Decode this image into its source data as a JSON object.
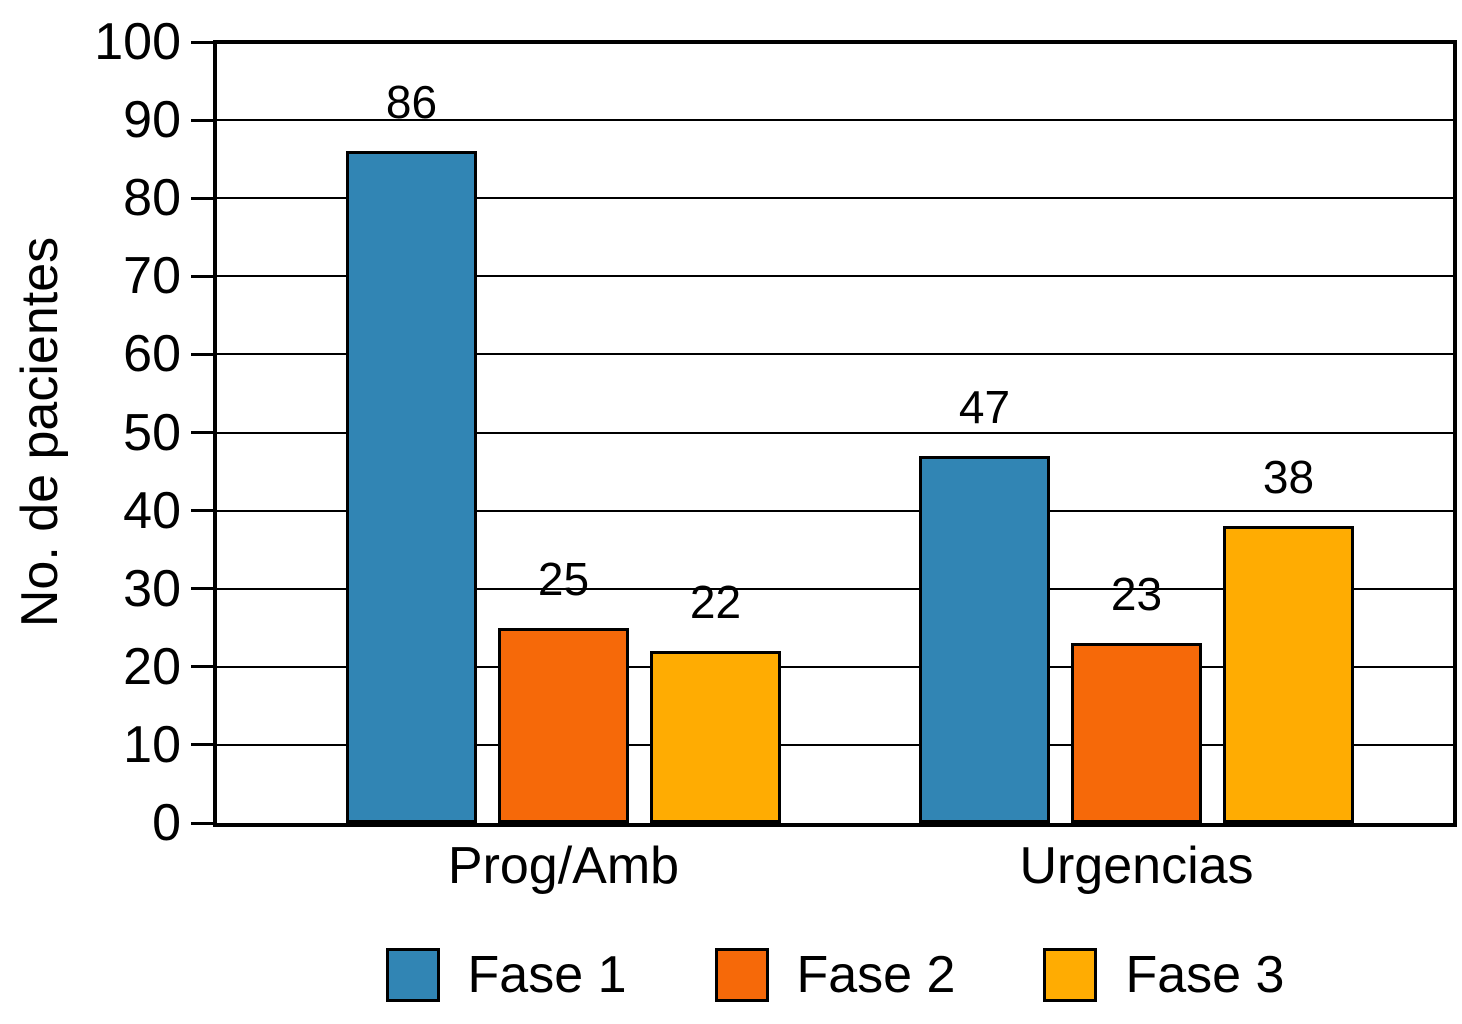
{
  "chart_data": {
    "type": "bar",
    "categories": [
      "Prog/Amb",
      "Urgencias"
    ],
    "series": [
      {
        "name": "Fase 1",
        "color": "#3185B4",
        "values": [
          86,
          47
        ]
      },
      {
        "name": "Fase 2",
        "color": "#F66909",
        "values": [
          25,
          23
        ]
      },
      {
        "name": "Fase 3",
        "color": "#FFAC02",
        "values": [
          22,
          38
        ]
      }
    ],
    "ylabel": "No. de pacientes",
    "xlabel": "",
    "yticks": [
      0,
      10,
      20,
      30,
      40,
      50,
      60,
      70,
      80,
      90,
      100
    ],
    "ylim": [
      0,
      100
    ],
    "grid": "horizontal",
    "data_labels": true,
    "legend_position": "bottom",
    "bar_outline_color": "#000000",
    "axis_color": "#000000",
    "background_color": "#FFFFFF"
  }
}
